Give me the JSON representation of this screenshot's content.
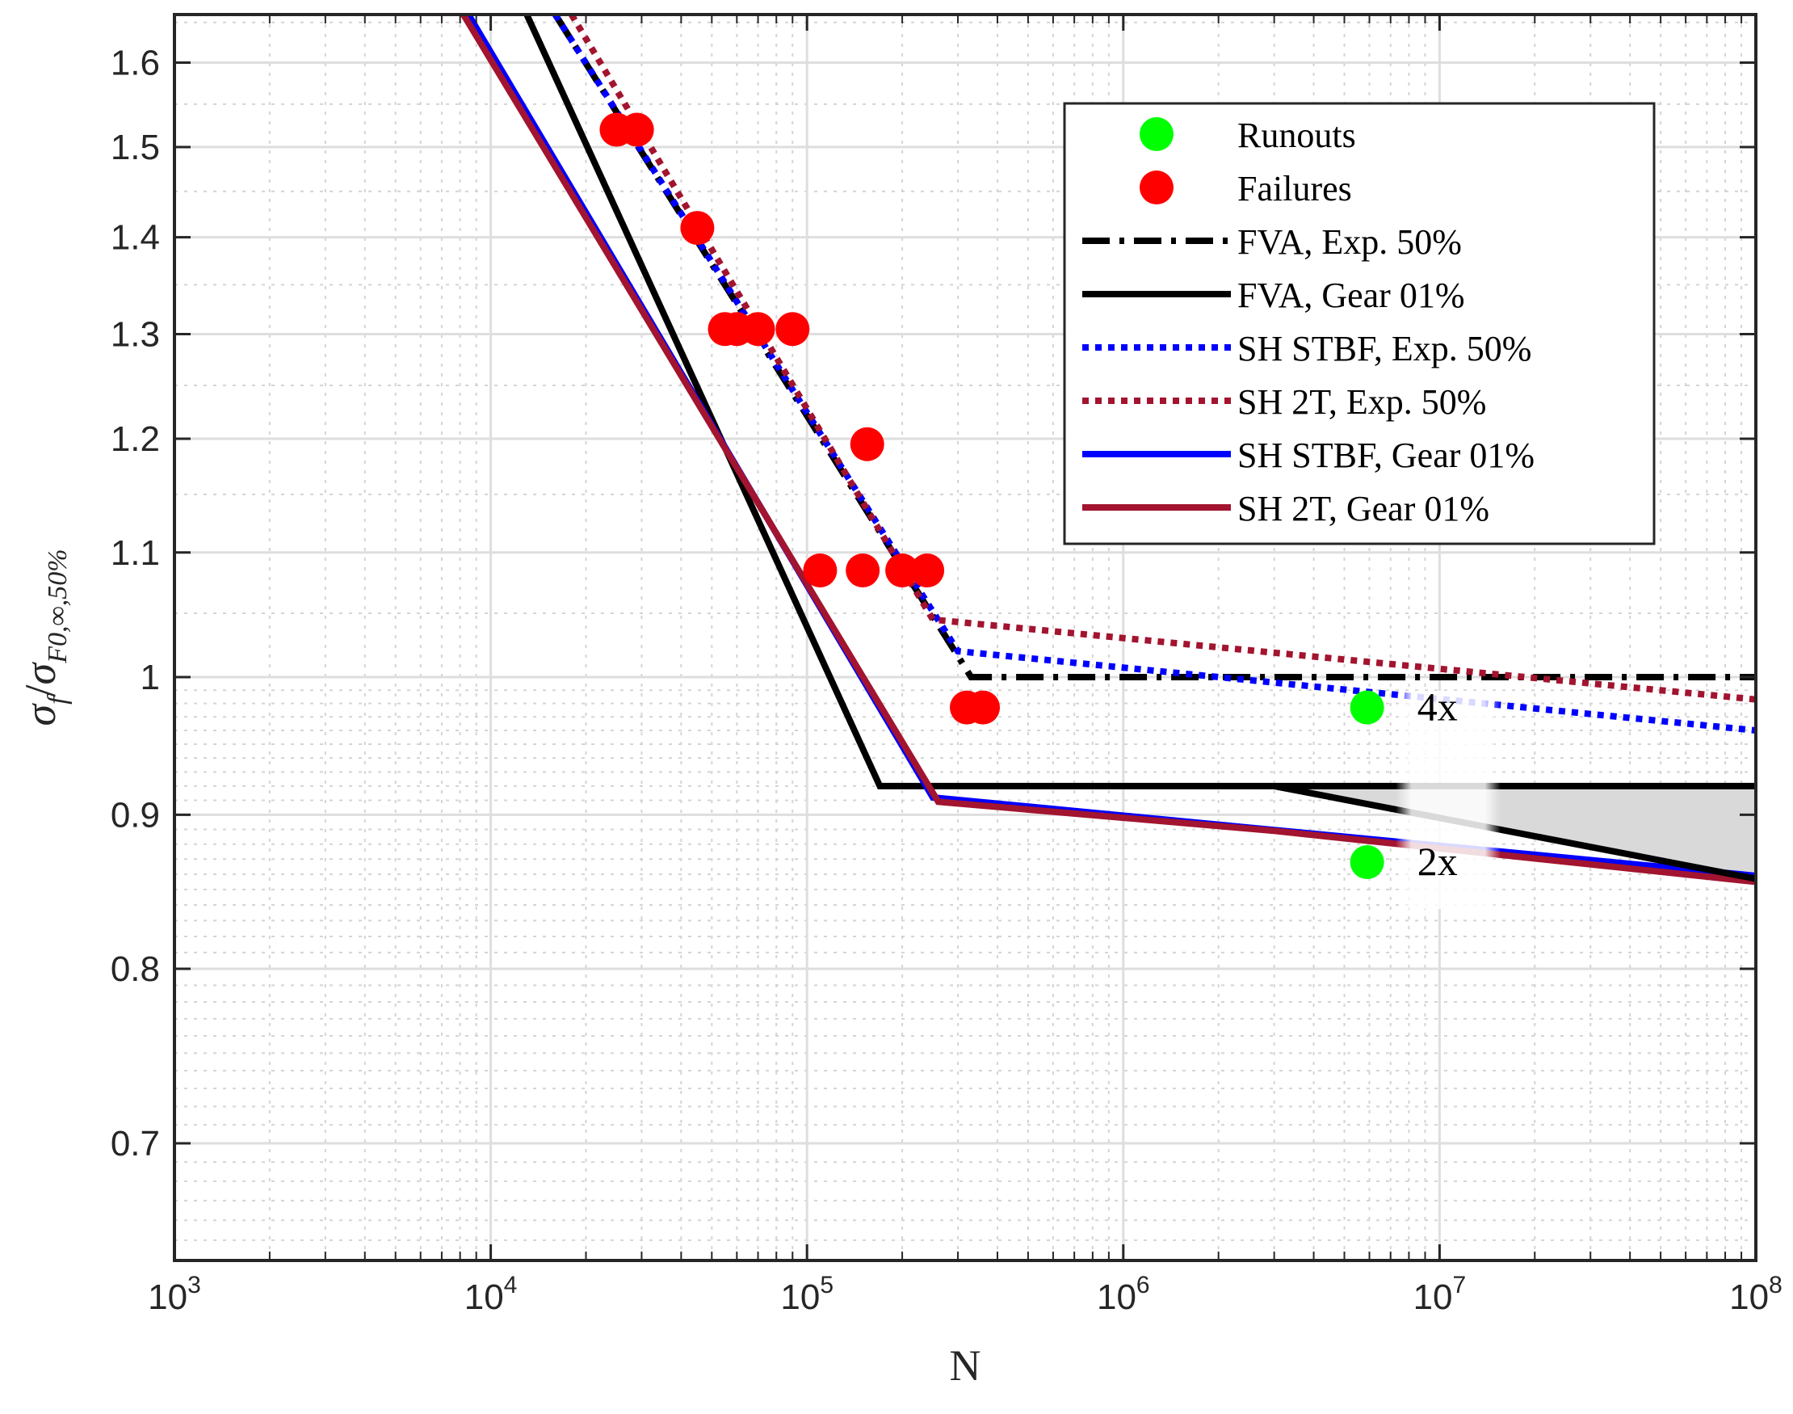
{
  "chart_data": {
    "type": "line",
    "xscale": "log",
    "yscale": "log",
    "xlabel": "N",
    "ylabel": {
      "base": "σ",
      "sub1": "f",
      "slash": "/",
      "base2": "σ",
      "sub2": "F0,∞,50%"
    },
    "xlim": [
      1000,
      100000000
    ],
    "ylim": [
      0.64,
      1.66
    ],
    "grid": true,
    "xticks": [
      {
        "value": 1000,
        "base": "10",
        "exp": "3"
      },
      {
        "value": 10000,
        "base": "10",
        "exp": "4"
      },
      {
        "value": 100000,
        "base": "10",
        "exp": "5"
      },
      {
        "value": 1000000,
        "base": "10",
        "exp": "6"
      },
      {
        "value": 10000000,
        "base": "10",
        "exp": "7"
      },
      {
        "value": 100000000,
        "base": "10",
        "exp": "8"
      }
    ],
    "yticks": [
      {
        "value": 0.7,
        "label": "0.7"
      },
      {
        "value": 0.8,
        "label": "0.8"
      },
      {
        "value": 0.9,
        "label": "0.9"
      },
      {
        "value": 1.0,
        "label": "1"
      },
      {
        "value": 1.1,
        "label": "1.1"
      },
      {
        "value": 1.2,
        "label": "1.2"
      },
      {
        "value": 1.3,
        "label": "1.3"
      },
      {
        "value": 1.4,
        "label": "1.4"
      },
      {
        "value": 1.5,
        "label": "1.5"
      },
      {
        "value": 1.6,
        "label": "1.6"
      }
    ],
    "shaded_region": {
      "x": [
        3000000,
        100000000,
        100000000
      ],
      "y": [
        0.92,
        0.92,
        0.857
      ],
      "color": "#d9d9d9"
    },
    "series": [
      {
        "name": "Runouts",
        "kind": "scatter",
        "color": "#00ff00",
        "x": [
          5900000,
          5900000
        ],
        "y": [
          0.977,
          0.868
        ]
      },
      {
        "name": "Failures",
        "kind": "scatter",
        "color": "#ff0000",
        "x": [
          25000,
          29000,
          45000,
          55000,
          60000,
          70000,
          90000,
          110000,
          150000,
          155000,
          200000,
          240000,
          320000,
          360000
        ],
        "y": [
          1.52,
          1.52,
          1.41,
          1.305,
          1.305,
          1.305,
          1.305,
          1.085,
          1.085,
          1.195,
          1.085,
          1.085,
          0.977,
          0.977
        ]
      },
      {
        "name": "FVA, Exp. 50%",
        "kind": "line",
        "dash": "dashdot",
        "color": "#000000",
        "x": [
          16000,
          330000,
          100000000
        ],
        "y": [
          1.66,
          1.0,
          1.0
        ]
      },
      {
        "name": "FVA, Gear 01%",
        "kind": "line",
        "dash": "solid",
        "color": "#000000",
        "x": [
          13000,
          170000,
          100000000
        ],
        "y": [
          1.66,
          0.92,
          0.92
        ]
      },
      {
        "name": "SH STBF, Exp. 50%",
        "kind": "line",
        "dash": "dotted",
        "color": "#0000ff",
        "x": [
          16000,
          300000,
          100000000
        ],
        "y": [
          1.66,
          1.02,
          0.96
        ]
      },
      {
        "name": "SH 2T, Exp. 50%",
        "kind": "line",
        "dash": "dotted",
        "color": "#a2142f",
        "x": [
          18000,
          250000,
          100000000
        ],
        "y": [
          1.66,
          1.045,
          0.983
        ]
      },
      {
        "name": "SH STBF, Gear 01%",
        "kind": "line",
        "dash": "solid",
        "color": "#0000ff",
        "x": [
          8500,
          250000,
          100000000
        ],
        "y": [
          1.66,
          0.912,
          0.859
        ]
      },
      {
        "name": "SH 2T, Gear 01%",
        "kind": "line",
        "dash": "solid",
        "color": "#a2142f",
        "x": [
          8200,
          260000,
          3000000,
          100000000
        ],
        "y": [
          1.66,
          0.909,
          0.889,
          0.855
        ]
      },
      {
        "name": "",
        "kind": "line",
        "dash": "solid",
        "color": "#000000",
        "x": [
          3000000,
          100000000
        ],
        "y": [
          0.92,
          0.857
        ]
      }
    ],
    "annotations": [
      {
        "text": "4x",
        "x": 8500000,
        "y": 0.977
      },
      {
        "text": "2x",
        "x": 8500000,
        "y": 0.868
      }
    ],
    "legend": {
      "position": "top-right",
      "entries": [
        "Runouts",
        "Failures",
        "FVA, Exp. 50%",
        "FVA, Gear 01%",
        "SH STBF, Exp. 50%",
        "SH 2T, Exp. 50%",
        "SH STBF, Gear 01%",
        "SH 2T, Gear 01%"
      ]
    }
  }
}
